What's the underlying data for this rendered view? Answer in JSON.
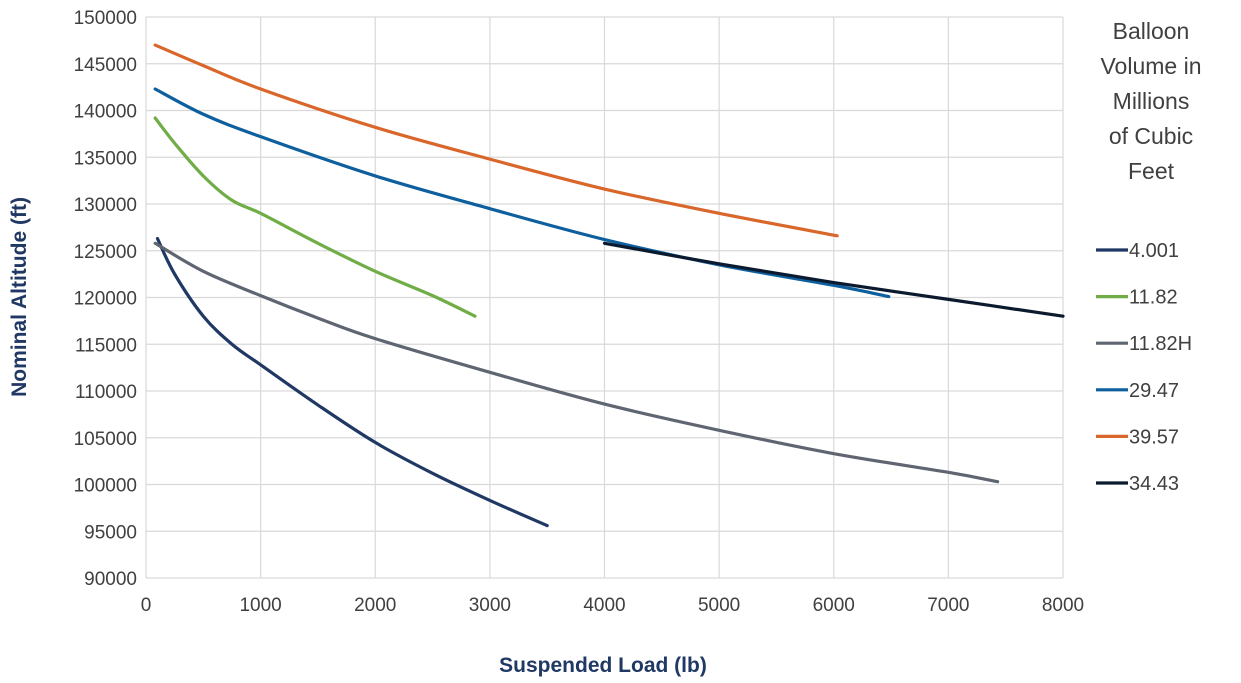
{
  "chart_data": {
    "type": "line",
    "title": "",
    "xlabel": "Suspended Load (lb)",
    "ylabel": "Nominal Altitude (ft)",
    "xlim": [
      0,
      8000
    ],
    "ylim": [
      90000,
      150000
    ],
    "xticks": [
      0,
      1000,
      2000,
      3000,
      4000,
      5000,
      6000,
      7000,
      8000
    ],
    "yticks": [
      90000,
      95000,
      100000,
      105000,
      110000,
      115000,
      120000,
      125000,
      130000,
      135000,
      140000,
      145000,
      150000
    ],
    "grid": true,
    "legend": {
      "position": "right",
      "title_lines": [
        "Balloon",
        "Volume in",
        "Millions",
        "of Cubic",
        "Feet"
      ]
    },
    "series": [
      {
        "name": "4.001",
        "color": "#1f3864",
        "points": [
          [
            100,
            126300
          ],
          [
            250,
            122500
          ],
          [
            500,
            118000
          ],
          [
            750,
            115000
          ],
          [
            1000,
            112800
          ],
          [
            1500,
            108500
          ],
          [
            2000,
            104500
          ],
          [
            2500,
            101200
          ],
          [
            3000,
            98300
          ],
          [
            3500,
            95600
          ]
        ]
      },
      {
        "name": "11.82",
        "color": "#70ad47",
        "points": [
          [
            80,
            139200
          ],
          [
            250,
            136500
          ],
          [
            500,
            133000
          ],
          [
            750,
            130400
          ],
          [
            1000,
            129000
          ],
          [
            1500,
            125800
          ],
          [
            2000,
            122800
          ],
          [
            2500,
            120200
          ],
          [
            2870,
            118000
          ]
        ]
      },
      {
        "name": "11.82H",
        "color": "#5f6672",
        "points": [
          [
            80,
            125800
          ],
          [
            500,
            122800
          ],
          [
            1000,
            120200
          ],
          [
            1500,
            117800
          ],
          [
            2000,
            115600
          ],
          [
            3000,
            112000
          ],
          [
            4000,
            108600
          ],
          [
            5000,
            105800
          ],
          [
            6000,
            103300
          ],
          [
            7000,
            101300
          ],
          [
            7430,
            100300
          ]
        ]
      },
      {
        "name": "29.47",
        "color": "#0d5f9e",
        "points": [
          [
            80,
            142300
          ],
          [
            500,
            139600
          ],
          [
            1000,
            137200
          ],
          [
            2000,
            133000
          ],
          [
            3000,
            129500
          ],
          [
            4000,
            126200
          ],
          [
            5000,
            123500
          ],
          [
            6000,
            121300
          ],
          [
            6480,
            120100
          ]
        ]
      },
      {
        "name": "39.57",
        "color": "#d9662a",
        "points": [
          [
            80,
            147000
          ],
          [
            500,
            144800
          ],
          [
            1000,
            142300
          ],
          [
            2000,
            138200
          ],
          [
            3000,
            134800
          ],
          [
            4000,
            131600
          ],
          [
            5000,
            129000
          ],
          [
            6030,
            126600
          ]
        ]
      },
      {
        "name": "34.43",
        "color": "#0b1a2e",
        "points": [
          [
            4000,
            125800
          ],
          [
            5000,
            123600
          ],
          [
            6000,
            121600
          ],
          [
            7000,
            119800
          ],
          [
            8000,
            118000
          ]
        ]
      }
    ]
  }
}
